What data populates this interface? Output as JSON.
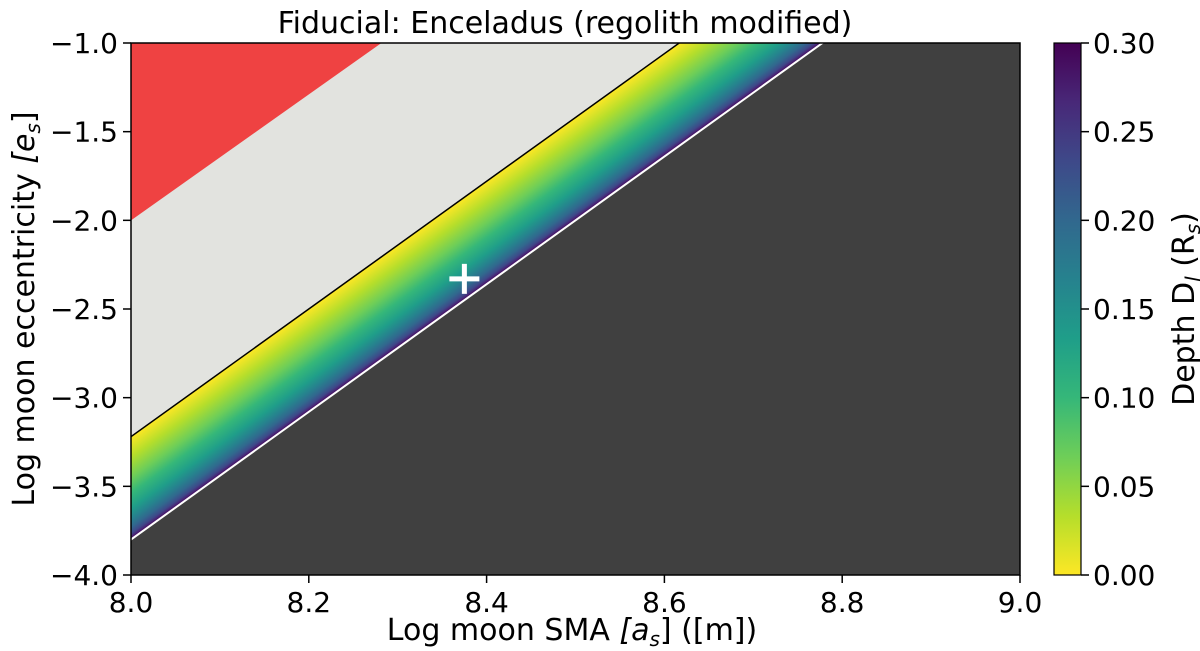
{
  "chart_data": {
    "type": "heatmap",
    "title": "Fiducial: Enceladus (regolith modified)",
    "xlabel": "Log moon SMA",
    "xlabel_symbol": "[a",
    "xlabel_sub": "s",
    "xlabel_suffix": "] ([m])",
    "ylabel": "Log moon eccentricity",
    "ylabel_symbol": "[e",
    "ylabel_sub": "s",
    "ylabel_suffix": "]",
    "xlim": [
      8.0,
      9.0
    ],
    "ylim": [
      -4.0,
      -1.0
    ],
    "xticks": [
      "8.0",
      "8.2",
      "8.4",
      "8.6",
      "8.8",
      "9.0"
    ],
    "yticks": [
      "−1.0",
      "−1.5",
      "−2.0",
      "−2.5",
      "−3.0",
      "−3.5",
      "−4.0"
    ],
    "ytick_values": [
      -1.0,
      -1.5,
      -2.0,
      -2.5,
      -3.0,
      -3.5,
      -4.0
    ],
    "xtick_values": [
      8.0,
      8.2,
      8.4,
      8.6,
      8.8,
      9.0
    ],
    "colorbar": {
      "label": "Depth D",
      "label_sub": "l",
      "label_suffix_open": " (R",
      "label_suffix_sub": "s",
      "label_suffix_close": ")",
      "cmap": "viridis_r",
      "range": [
        0.0,
        0.3
      ],
      "ticks": [
        "0.00",
        "0.05",
        "0.10",
        "0.15",
        "0.20",
        "0.25",
        "0.30"
      ],
      "tick_values": [
        0.0,
        0.05,
        0.1,
        0.15,
        0.2,
        0.25,
        0.3
      ]
    },
    "regions": {
      "red": {
        "color": "#ef4242",
        "boundary_line": {
          "slope": 3.55,
          "intercept_at_x8": -2.0
        }
      },
      "light": {
        "color": "#e2e3df"
      },
      "band": {
        "upper_line": {
          "slope": 3.6,
          "intercept_at_x8": -3.22
        },
        "lower_line": {
          "slope": 3.6,
          "intercept_at_x8": -3.8
        }
      },
      "dark": {
        "color": "#404040"
      }
    },
    "marker": {
      "x": 8.375,
      "y": -2.33,
      "symbol": "+",
      "color": "#ffffff"
    }
  }
}
